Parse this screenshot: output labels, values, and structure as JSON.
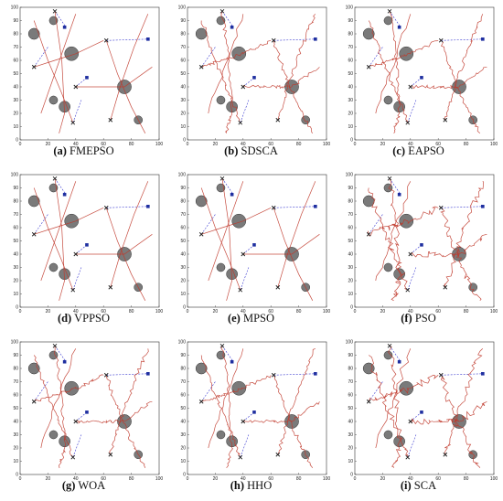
{
  "panels": [
    {
      "letter": "(a)",
      "label": "FMEPSO",
      "style": "straight"
    },
    {
      "letter": "(b)",
      "label": "SDSCA",
      "style": "wiggly"
    },
    {
      "letter": "(c)",
      "label": "EAPSO",
      "style": "wiggly"
    },
    {
      "letter": "(d)",
      "label": "VPPSO",
      "style": "straight"
    },
    {
      "letter": "(e)",
      "label": "MPSO",
      "style": "straight"
    },
    {
      "letter": "(f)",
      "label": "PSO",
      "style": "very-wiggly"
    },
    {
      "letter": "(g)",
      "label": "WOA",
      "style": "wiggly"
    },
    {
      "letter": "(h)",
      "label": "HHO",
      "style": "wiggly"
    },
    {
      "letter": "(i)",
      "label": "SCA",
      "style": "very-wiggly"
    }
  ],
  "axis": {
    "xticks": [
      "0",
      "20",
      "40",
      "60",
      "80",
      "100"
    ],
    "yticks": [
      "0",
      "10",
      "20",
      "30",
      "40",
      "50",
      "60",
      "70",
      "80",
      "90",
      "100"
    ]
  },
  "colors": {
    "obstacle": "#7a7a7a",
    "path": "#c0392b",
    "planned": "#3a3ad0",
    "target": "#1f2fa0",
    "start": "#222222"
  },
  "obstacles": [
    {
      "x": 10,
      "y": 80,
      "r": 4
    },
    {
      "x": 24,
      "y": 90,
      "r": 3
    },
    {
      "x": 37,
      "y": 65,
      "r": 5
    },
    {
      "x": 24,
      "y": 30,
      "r": 3
    },
    {
      "x": 32,
      "y": 25,
      "r": 4
    },
    {
      "x": 75,
      "y": 40,
      "r": 5
    },
    {
      "x": 85,
      "y": 15,
      "r": 3
    }
  ],
  "starts": [
    {
      "x": 25,
      "y": 97
    },
    {
      "x": 62,
      "y": 75
    },
    {
      "x": 10,
      "y": 55
    },
    {
      "x": 40,
      "y": 40
    },
    {
      "x": 38,
      "y": 13
    },
    {
      "x": 65,
      "y": 15
    }
  ],
  "targets": [
    {
      "x": 32,
      "y": 85
    },
    {
      "x": 92,
      "y": 76
    },
    {
      "x": 48,
      "y": 47
    }
  ]
}
